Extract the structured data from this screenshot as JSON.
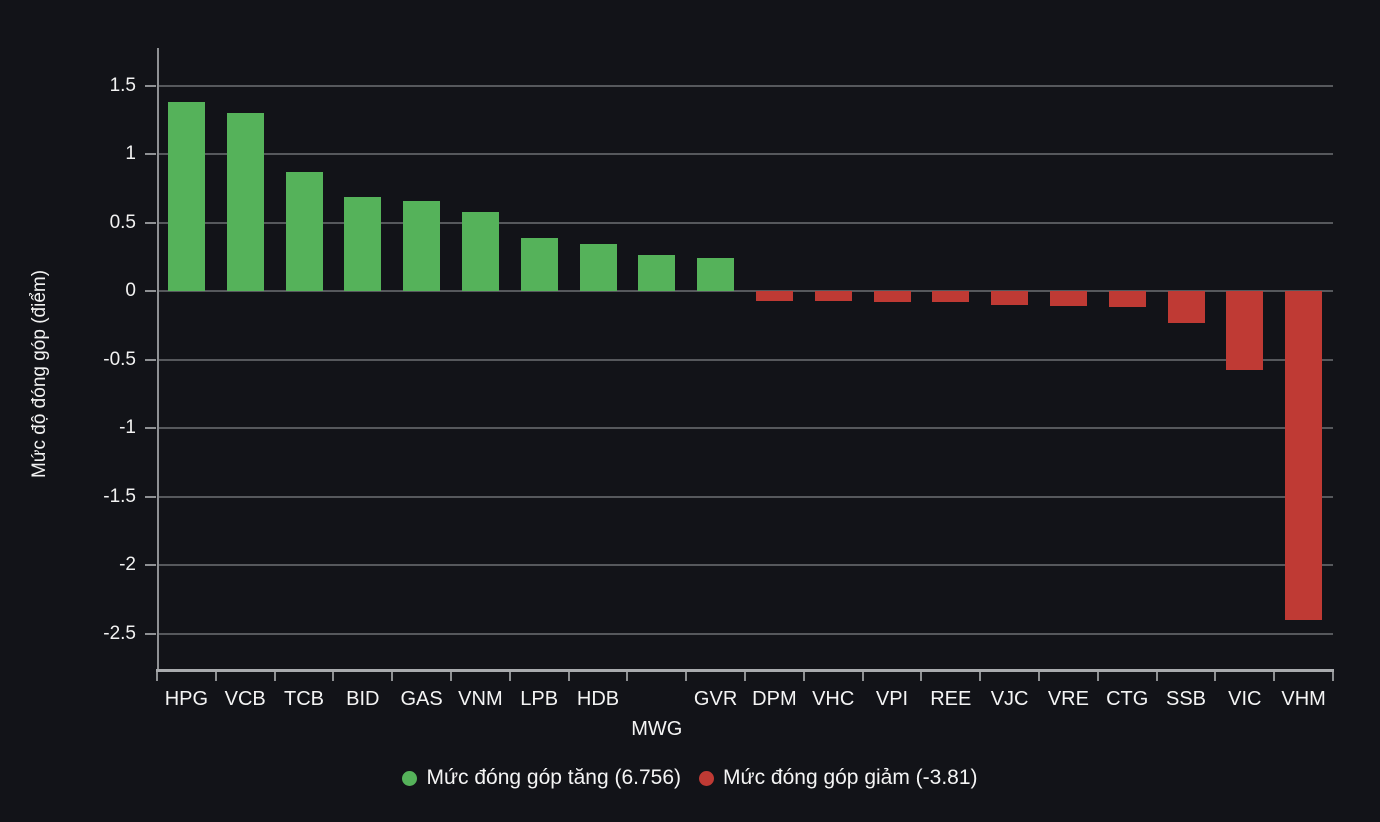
{
  "chart_data": {
    "type": "bar",
    "title": "",
    "xlabel": "",
    "ylabel": "Mức độ đóng góp (điểm)",
    "categories": [
      "HPG",
      "VCB",
      "TCB",
      "BID",
      "GAS",
      "VNM",
      "LPB",
      "HDB",
      "MWG",
      "GVR",
      "DPM",
      "VHC",
      "VPI",
      "REE",
      "VJC",
      "VRE",
      "CTG",
      "SSB",
      "VIC",
      "VHM"
    ],
    "values": [
      1.38,
      1.3,
      0.87,
      0.69,
      0.66,
      0.58,
      0.39,
      0.34,
      0.26,
      0.24,
      -0.07,
      -0.07,
      -0.08,
      -0.08,
      -0.1,
      -0.11,
      -0.12,
      -0.23,
      -0.58,
      -2.4
    ],
    "series": [
      {
        "name": "Mức đóng góp tăng",
        "total": 6.756,
        "color": "#55b25a"
      },
      {
        "name": "Mức đóng góp giảm",
        "total": -3.81,
        "color": "#bf3a34"
      }
    ],
    "y_ticks": [
      1.5,
      1,
      0.5,
      0,
      -0.5,
      -1,
      -1.5,
      -2,
      -2.5
    ],
    "y_tick_labels": [
      "1.5",
      "1",
      "0.5",
      "0",
      "-0.5",
      "-1",
      "-1.5",
      "-2",
      "-2.5"
    ],
    "ylim": [
      -2.766,
      1.774
    ],
    "grid": true,
    "legend_position": "bottom",
    "legend": [
      {
        "label": "Mức đóng góp tăng (6.756)",
        "color": "#55b25a"
      },
      {
        "label": "Mức đóng góp giảm (-3.81)",
        "color": "#bf3a34"
      }
    ],
    "staggered_categories": [
      "MWG"
    ],
    "colors": {
      "positive": "#55b25a",
      "negative": "#bf3a34",
      "background": "#121318",
      "gridline": "#56585c",
      "axis": "#8f9194",
      "text": "#f2f2f2"
    }
  }
}
